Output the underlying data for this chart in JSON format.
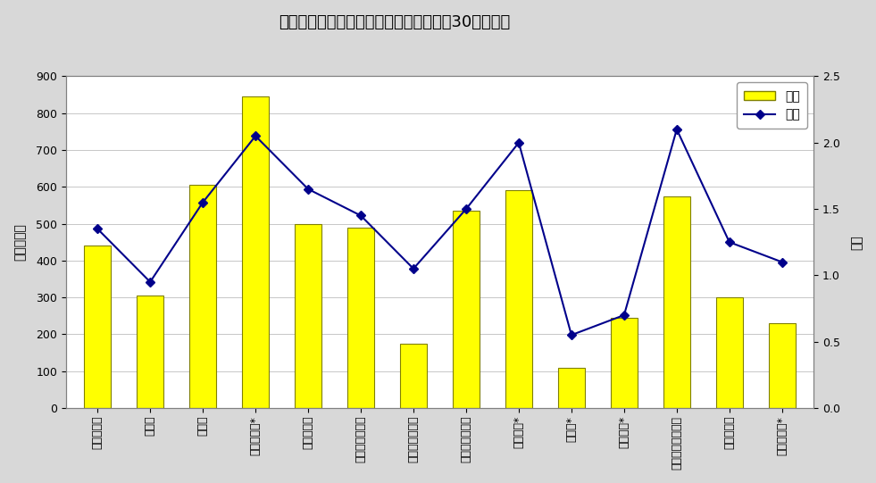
{
  "title": "産業別年末賞与の支給状況（事業所規模30人以上）",
  "categories": [
    "調査産業計",
    "建設業",
    "製造業",
    "電気・ガス*",
    "情報通信業",
    "運輸業，郵便業",
    "卸売業，小売業",
    "金融業，保険業",
    "学術研究*",
    "宿泊業*",
    "生活関連*",
    "教育，学習支援業",
    "医療，福祉",
    "サービス業*"
  ],
  "bar_values": [
    440,
    305,
    605,
    845,
    500,
    490,
    175,
    535,
    590,
    110,
    245,
    575,
    300,
    230
  ],
  "line_values": [
    1.35,
    0.95,
    1.55,
    2.05,
    1.65,
    1.45,
    1.05,
    1.5,
    2.0,
    0.55,
    0.7,
    2.1,
    1.25,
    1.1
  ],
  "bar_color": "#FFFF00",
  "bar_edge_color": "#808000",
  "line_color": "#00008B",
  "marker_color": "#00008B",
  "ylabel_left": "金額　千円",
  "ylabel_right": "月数",
  "ylim_left": [
    0,
    900
  ],
  "ylim_right": [
    0,
    2.5
  ],
  "yticks_left": [
    0,
    100,
    200,
    300,
    400,
    500,
    600,
    700,
    800,
    900
  ],
  "yticks_right": [
    0.0,
    0.5,
    1.0,
    1.5,
    2.0,
    2.5
  ],
  "legend_bar_label": "金額",
  "legend_line_label": "月数",
  "background_color": "#d8d8d8",
  "plot_bg_color": "#ffffff",
  "title_fontsize": 13,
  "axis_fontsize": 10,
  "tick_fontsize": 9,
  "xlabel_rotation": 270
}
